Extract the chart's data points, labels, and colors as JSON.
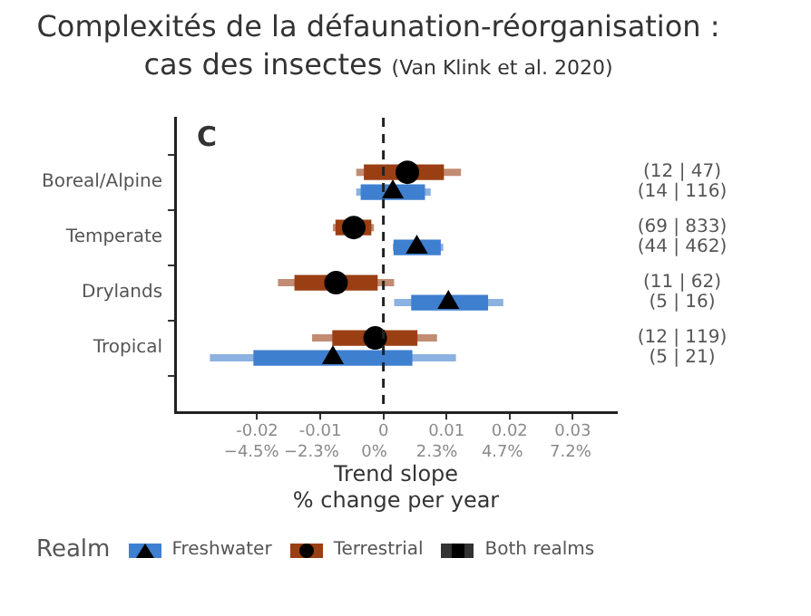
{
  "chart_data": {
    "type": "box",
    "orientation": "horizontal",
    "title": "Complexités de la défaunation-réorganisation : cas des insectes",
    "subtitle": "(Van Klink et al. 2020)",
    "xlabel": "Trend slope\n% change per year",
    "legend_title": "Realm",
    "legend": "bottom",
    "grid": false,
    "categories": [
      "Boreal/Alpine",
      "Temperate",
      "Drylands",
      "Tropical"
    ],
    "xlim": [
      -0.033,
      0.037
    ],
    "xticks": [
      -0.02,
      -0.01,
      0,
      0.01,
      0.02,
      0.03
    ],
    "x2lim": [
      -7.3,
      8.9
    ],
    "x2ticks": [
      {
        "value": -4.5,
        "label": "−4.5%"
      },
      {
        "value": -2.3,
        "label": "−2.3%"
      },
      {
        "value": 0,
        "label": "0%"
      },
      {
        "value": 2.3,
        "label": "2.3%"
      },
      {
        "value": 4.7,
        "label": "4.7%"
      },
      {
        "value": 7.2,
        "label": "7.2%"
      }
    ],
    "ref_lines": [
      {
        "axis": "x",
        "value": 0,
        "color": "#222222",
        "line_style": "dashed"
      }
    ],
    "annotations": [
      "C"
    ],
    "series": [
      {
        "name": "Freshwater",
        "color": "#3f7fcf",
        "marker": "triangle",
        "value_labels": [
          "(14 | 116)",
          "(44 | 462)",
          "(5 | 16)",
          "(5 | 21)"
        ],
        "boxes": [
          {
            "low": -0.0043,
            "q1": -0.0035,
            "median": 0.0015,
            "q3": 0.0065,
            "high": 0.0075
          },
          {
            "low": 0.0015,
            "q1": 0.0017,
            "median": 0.0053,
            "q3": 0.009,
            "high": 0.0095
          },
          {
            "low": 0.0017,
            "q1": 0.0045,
            "median": 0.0103,
            "q3": 0.0165,
            "high": 0.019
          },
          {
            "low": -0.0275,
            "q1": -0.0205,
            "median": -0.008,
            "q3": 0.0045,
            "high": 0.0115
          }
        ]
      },
      {
        "name": "Terrestrial",
        "color": "#9a3f14",
        "marker": "circle",
        "value_labels": [
          "(12 | 47)",
          "(69 | 833)",
          "(11 | 62)",
          "(12 | 119)"
        ],
        "boxes": [
          {
            "low": -0.0043,
            "q1": -0.003,
            "median": 0.0038,
            "q3": 0.0095,
            "high": 0.0123
          },
          {
            "low": -0.008,
            "q1": -0.0075,
            "median": -0.0047,
            "q3": -0.002,
            "high": -0.0015
          },
          {
            "low": -0.0167,
            "q1": -0.014,
            "median": -0.0075,
            "q3": -0.001,
            "high": 0.0017
          },
          {
            "low": -0.0113,
            "q1": -0.008,
            "median": -0.0013,
            "q3": 0.0053,
            "high": 0.0085
          }
        ]
      },
      {
        "name": "Both realms",
        "color": "#333333",
        "marker": "square",
        "boxes": [
          null,
          null,
          null,
          null
        ]
      }
    ]
  }
}
